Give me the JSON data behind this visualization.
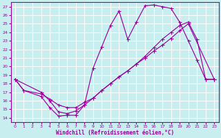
{
  "bg_color": "#c8eef0",
  "grid_color": "#ffffff",
  "line_color": "#990099",
  "xlabel": "Windchill (Refroidissement éolien,°C)",
  "xlim": [
    -0.5,
    23.5
  ],
  "ylim": [
    13.5,
    27.5
  ],
  "xticks": [
    0,
    1,
    2,
    3,
    4,
    5,
    6,
    7,
    8,
    9,
    10,
    11,
    12,
    13,
    14,
    15,
    16,
    17,
    18,
    19,
    20,
    21,
    22,
    23
  ],
  "yticks": [
    14,
    15,
    16,
    17,
    18,
    19,
    20,
    21,
    22,
    23,
    24,
    25,
    26,
    27
  ],
  "line1_x": [
    0,
    1,
    3,
    4,
    5,
    6,
    7,
    8,
    9,
    10,
    11,
    12,
    13,
    14,
    15,
    16,
    17,
    18,
    19,
    20,
    21,
    22,
    23
  ],
  "line1_y": [
    18.5,
    17.2,
    16.5,
    15.2,
    14.2,
    14.3,
    14.3,
    15.5,
    19.8,
    22.3,
    24.8,
    26.5,
    23.2,
    25.2,
    27.1,
    27.2,
    27.0,
    26.8,
    25.2,
    23.0,
    20.8,
    18.5,
    18.5
  ],
  "line2_x": [
    0,
    1,
    3,
    4,
    5,
    6,
    7,
    8,
    9,
    10,
    11,
    12,
    13,
    14,
    15,
    16,
    17,
    18,
    19,
    20,
    21,
    22,
    23
  ],
  "line2_y": [
    18.5,
    17.2,
    16.8,
    16.2,
    15.5,
    15.2,
    15.2,
    15.8,
    16.3,
    17.2,
    18.0,
    18.8,
    19.5,
    20.3,
    21.2,
    22.2,
    23.2,
    24.0,
    24.8,
    25.2,
    23.2,
    18.5,
    18.5
  ],
  "line3_x": [
    0,
    3,
    4,
    5,
    6,
    7,
    8,
    9,
    10,
    11,
    12,
    13,
    14,
    15,
    16,
    17,
    18,
    19,
    20,
    23
  ],
  "line3_y": [
    18.5,
    17.0,
    16.0,
    14.7,
    14.5,
    14.8,
    15.5,
    16.3,
    17.2,
    18.0,
    18.8,
    19.5,
    20.3,
    21.0,
    21.8,
    22.5,
    23.3,
    24.2,
    25.0,
    18.5
  ]
}
